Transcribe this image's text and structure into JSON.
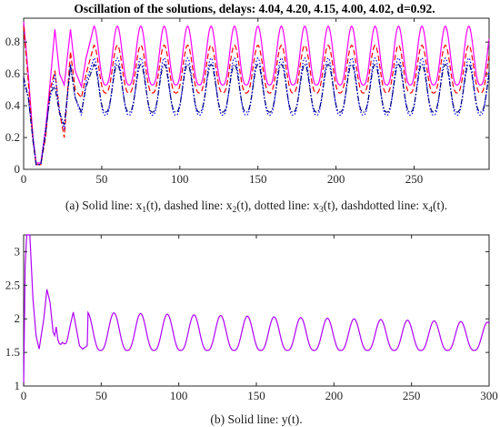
{
  "figure": {
    "title": "Oscillation of the solutions, delays: 4.04, 4.20, 4.15, 4.00, 4.02, d=0.92.",
    "caption_a": {
      "prefix": "(a) Solid line: x",
      "s1": "1",
      "t1": "(t), dashed line: x",
      "s2": "2",
      "t2": "(t), dotted line: x",
      "s3": "3",
      "t3": "(t), dashdotted line: x",
      "s4": "4",
      "t4": "(t)."
    },
    "caption_b": "(b) Solid line: y(t)."
  },
  "chart_data": [
    {
      "type": "line",
      "title": "Oscillation of the solutions, delays: 4.04, 4.20, 4.15, 4.00, 4.02, d=0.92.",
      "xlabel": "",
      "ylabel": "",
      "xlim": [
        0,
        298
      ],
      "ylim": [
        0,
        0.95
      ],
      "x_ticks": [
        "0",
        "50",
        "100",
        "150",
        "200",
        "250"
      ],
      "y_ticks": [
        "0",
        "0.2",
        "0.4",
        "0.6",
        "0.8"
      ],
      "grid": false,
      "series": [
        {
          "name": "x1(t)",
          "style": "solid",
          "color": "#ff00ff",
          "period": 15,
          "peak": 0.9,
          "trough": 0.53,
          "points": [
            [
              0,
              0.93
            ],
            [
              3,
              0.6
            ],
            [
              6,
              0.2
            ],
            [
              8,
              0.04
            ],
            [
              11,
              0.04
            ],
            [
              14,
              0.25
            ],
            [
              17,
              0.55
            ],
            [
              20,
              0.88
            ],
            [
              23,
              0.6
            ],
            [
              26,
              0.53
            ],
            [
              30,
              0.88
            ],
            [
              33,
              0.62
            ],
            [
              37,
              0.52
            ],
            [
              40,
              0.7
            ],
            [
              45,
              0.9
            ]
          ]
        },
        {
          "name": "x2(t)",
          "style": "dashed",
          "color": "#ff0000",
          "period": 15,
          "peak": 0.78,
          "trough": 0.48,
          "points": [
            [
              0,
              0.9
            ],
            [
              3,
              0.55
            ],
            [
              6,
              0.18
            ],
            [
              8,
              0.03
            ],
            [
              11,
              0.03
            ],
            [
              14,
              0.2
            ],
            [
              17,
              0.5
            ],
            [
              20,
              0.62
            ],
            [
              23,
              0.36
            ],
            [
              26,
              0.2
            ],
            [
              30,
              0.74
            ],
            [
              33,
              0.5
            ],
            [
              37,
              0.45
            ],
            [
              40,
              0.6
            ],
            [
              45,
              0.78
            ]
          ]
        },
        {
          "name": "x3(t)",
          "style": "dotted",
          "color": "#0000ff",
          "period": 15,
          "peak": 0.7,
          "trough": 0.34,
          "points": [
            [
              0,
              0.55
            ],
            [
              3,
              0.45
            ],
            [
              6,
              0.2
            ],
            [
              8,
              0.03
            ],
            [
              11,
              0.03
            ],
            [
              14,
              0.25
            ],
            [
              17,
              0.45
            ],
            [
              20,
              0.6
            ],
            [
              23,
              0.37
            ],
            [
              26,
              0.25
            ],
            [
              30,
              0.66
            ],
            [
              33,
              0.45
            ],
            [
              37,
              0.34
            ],
            [
              40,
              0.55
            ],
            [
              45,
              0.7
            ]
          ]
        },
        {
          "name": "x4(t)",
          "style": "dashdot",
          "color": "#000080",
          "period": 15,
          "peak": 0.66,
          "trough": 0.36,
          "points": [
            [
              0,
              0.58
            ],
            [
              3,
              0.45
            ],
            [
              6,
              0.18
            ],
            [
              8,
              0.03
            ],
            [
              11,
              0.03
            ],
            [
              14,
              0.22
            ],
            [
              17,
              0.48
            ],
            [
              20,
              0.52
            ],
            [
              23,
              0.35
            ],
            [
              26,
              0.28
            ],
            [
              30,
              0.65
            ],
            [
              33,
              0.45
            ],
            [
              37,
              0.36
            ],
            [
              40,
              0.52
            ],
            [
              45,
              0.66
            ]
          ]
        }
      ]
    },
    {
      "type": "line",
      "title": "",
      "xlabel": "",
      "ylabel": "",
      "xlim": [
        0,
        300
      ],
      "ylim": [
        1,
        3.25
      ],
      "x_ticks": [
        "0",
        "50",
        "100",
        "150",
        "200",
        "250",
        "300"
      ],
      "y_ticks": [
        "1",
        "1.5",
        "2",
        "2.5",
        "3"
      ],
      "grid": false,
      "series": [
        {
          "name": "y(t)",
          "style": "solid",
          "color": "#b000ff",
          "period": 17.2,
          "peak_start": 2.1,
          "peak_end": 1.95,
          "trough": 1.53,
          "points": [
            [
              0,
              1.0
            ],
            [
              1,
              2.8
            ],
            [
              2,
              3.25
            ],
            [
              4,
              3.25
            ],
            [
              6,
              2.3
            ],
            [
              8,
              1.75
            ],
            [
              10,
              1.55
            ],
            [
              13,
              2.0
            ],
            [
              15,
              2.44
            ],
            [
              17,
              2.25
            ],
            [
              19,
              1.8
            ],
            [
              20,
              1.75
            ],
            [
              21,
              1.88
            ],
            [
              22,
              1.7
            ],
            [
              23,
              1.63
            ],
            [
              24,
              1.62
            ],
            [
              25,
              1.65
            ],
            [
              26,
              1.63
            ],
            [
              27,
              1.63
            ],
            [
              28,
              1.67
            ],
            [
              30,
              1.9
            ],
            [
              32,
              2.1
            ],
            [
              34,
              1.85
            ],
            [
              36,
              1.6
            ],
            [
              38,
              1.55
            ],
            [
              41,
              1.6
            ]
          ]
        }
      ]
    }
  ]
}
